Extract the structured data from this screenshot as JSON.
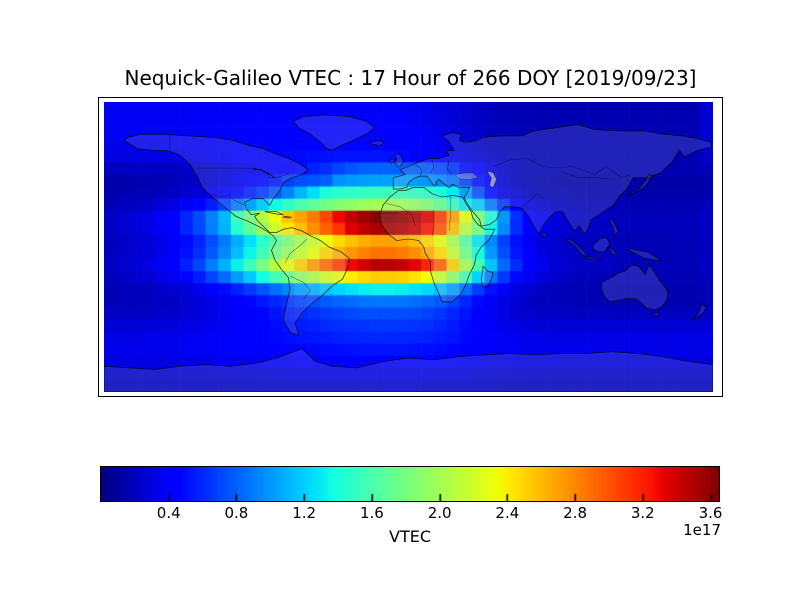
{
  "title": "Nequick-Galileo VTEC : 17 Hour of 266 DOY [2019/09/23]",
  "colorbar": {
    "label": "VTEC",
    "offset_label": "1e17",
    "tick_labels": [
      "0.4",
      "0.8",
      "1.2",
      "1.6",
      "2.0",
      "2.4",
      "2.8",
      "3.2",
      "3.6"
    ],
    "tick_values": [
      0.4,
      0.8,
      1.2,
      1.6,
      2.0,
      2.4,
      2.8,
      3.2,
      3.6
    ],
    "vmin": 0,
    "vmax": 3.65,
    "colormap": "jet"
  },
  "map": {
    "land_fill": "#c6c8d2",
    "coastline_color": "#000000",
    "background": "#ffffff",
    "peak_color": "#8b0000",
    "low_color": "#000091"
  },
  "chart_data": {
    "type": "heatmap",
    "title": "Nequick-Galileo VTEC : 17 Hour of 266 DOY [2019/09/23]",
    "colorbar_label": "VTEC",
    "scale_offset_label": "1e17",
    "colormap": "jet",
    "vmin": 0,
    "vmax": 3.65,
    "legend_position": "bottom-colorbar",
    "grid": {
      "lon_start": -180,
      "lon_step": 7.5,
      "lat_start": 90,
      "lat_step": -7.5,
      "cols": 48,
      "rows": 24
    },
    "overlay": "world-coastlines",
    "values": [
      [
        0.37,
        0.37,
        0.37,
        0.37,
        0.37,
        0.37,
        0.37,
        0.38,
        0.38,
        0.38,
        0.38,
        0.39,
        0.39,
        0.39,
        0.39,
        0.39,
        0.39,
        0.39,
        0.39,
        0.39,
        0.39,
        0.39,
        0.38,
        0.37,
        0.35,
        0.33,
        0.3,
        0.27,
        0.24,
        0.21,
        0.19,
        0.18,
        0.17,
        0.17,
        0.16,
        0.16,
        0.16,
        0.16,
        0.16,
        0.16,
        0.16,
        0.16,
        0.16,
        0.16,
        0.16,
        0.16,
        0.16,
        0.25
      ],
      [
        0.37,
        0.37,
        0.37,
        0.37,
        0.38,
        0.38,
        0.38,
        0.38,
        0.39,
        0.39,
        0.39,
        0.4,
        0.4,
        0.4,
        0.4,
        0.41,
        0.41,
        0.41,
        0.41,
        0.41,
        0.41,
        0.4,
        0.4,
        0.39,
        0.37,
        0.34,
        0.31,
        0.28,
        0.25,
        0.22,
        0.2,
        0.18,
        0.17,
        0.17,
        0.16,
        0.16,
        0.16,
        0.16,
        0.16,
        0.16,
        0.16,
        0.16,
        0.16,
        0.16,
        0.16,
        0.16,
        0.16,
        0.28
      ],
      [
        0.36,
        0.36,
        0.36,
        0.37,
        0.37,
        0.37,
        0.38,
        0.38,
        0.39,
        0.39,
        0.4,
        0.41,
        0.41,
        0.42,
        0.42,
        0.43,
        0.43,
        0.43,
        0.43,
        0.43,
        0.43,
        0.43,
        0.42,
        0.41,
        0.39,
        0.36,
        0.33,
        0.29,
        0.26,
        0.23,
        0.2,
        0.19,
        0.18,
        0.17,
        0.17,
        0.16,
        0.16,
        0.16,
        0.16,
        0.16,
        0.16,
        0.16,
        0.16,
        0.16,
        0.16,
        0.16,
        0.16,
        0.27
      ],
      [
        0.34,
        0.34,
        0.34,
        0.35,
        0.35,
        0.36,
        0.37,
        0.37,
        0.38,
        0.39,
        0.4,
        0.42,
        0.43,
        0.44,
        0.45,
        0.46,
        0.46,
        0.47,
        0.47,
        0.47,
        0.47,
        0.46,
        0.45,
        0.44,
        0.42,
        0.39,
        0.35,
        0.31,
        0.27,
        0.24,
        0.21,
        0.19,
        0.18,
        0.17,
        0.17,
        0.17,
        0.17,
        0.17,
        0.17,
        0.17,
        0.16,
        0.16,
        0.16,
        0.16,
        0.16,
        0.16,
        0.16,
        0.25
      ],
      [
        0.31,
        0.31,
        0.32,
        0.32,
        0.33,
        0.33,
        0.34,
        0.35,
        0.37,
        0.38,
        0.4,
        0.42,
        0.44,
        0.46,
        0.48,
        0.49,
        0.5,
        0.51,
        0.52,
        0.52,
        0.52,
        0.52,
        0.51,
        0.49,
        0.47,
        0.44,
        0.4,
        0.35,
        0.31,
        0.27,
        0.23,
        0.21,
        0.19,
        0.18,
        0.17,
        0.17,
        0.17,
        0.17,
        0.17,
        0.17,
        0.16,
        0.16,
        0.16,
        0.16,
        0.16,
        0.16,
        0.16,
        0.23
      ],
      [
        0.2,
        0.2,
        0.21,
        0.21,
        0.22,
        0.22,
        0.23,
        0.24,
        0.26,
        0.29,
        0.32,
        0.35,
        0.39,
        0.42,
        0.46,
        0.49,
        0.57,
        0.62,
        0.7,
        0.76,
        0.8,
        0.81,
        0.81,
        0.8,
        0.79,
        0.77,
        0.72,
        0.62,
        0.5,
        0.4,
        0.3,
        0.25,
        0.22,
        0.2,
        0.18,
        0.17,
        0.17,
        0.16,
        0.16,
        0.16,
        0.16,
        0.16,
        0.16,
        0.16,
        0.16,
        0.16,
        0.16,
        0.18
      ],
      [
        0.14,
        0.14,
        0.15,
        0.16,
        0.17,
        0.18,
        0.21,
        0.23,
        0.27,
        0.31,
        0.35,
        0.4,
        0.48,
        0.55,
        0.68,
        0.73,
        0.76,
        0.8,
        0.98,
        1.01,
        1.03,
        1.04,
        1.04,
        1.03,
        1.01,
        0.99,
        0.95,
        0.88,
        0.69,
        0.52,
        0.4,
        0.26,
        0.21,
        0.18,
        0.16,
        0.15,
        0.14,
        0.14,
        0.14,
        0.14,
        0.13,
        0.13,
        0.13,
        0.13,
        0.13,
        0.13,
        0.13,
        0.14
      ],
      [
        0.15,
        0.16,
        0.17,
        0.17,
        0.19,
        0.21,
        0.25,
        0.28,
        0.34,
        0.4,
        0.48,
        0.56,
        0.66,
        0.78,
        0.92,
        1.1,
        1.25,
        1.4,
        1.45,
        1.49,
        1.51,
        1.53,
        1.53,
        1.52,
        1.5,
        1.46,
        1.4,
        1.29,
        1.04,
        0.74,
        0.49,
        0.32,
        0.26,
        0.21,
        0.18,
        0.17,
        0.16,
        0.15,
        0.15,
        0.15,
        0.14,
        0.14,
        0.14,
        0.14,
        0.14,
        0.14,
        0.14,
        0.15
      ],
      [
        0.18,
        0.2,
        0.21,
        0.23,
        0.27,
        0.31,
        0.38,
        0.46,
        0.57,
        0.7,
        0.9,
        1.05,
        1.2,
        1.35,
        1.48,
        1.6,
        1.7,
        1.78,
        1.86,
        1.92,
        1.97,
        2.0,
        2.0,
        1.98,
        1.93,
        1.85,
        1.72,
        1.51,
        1.3,
        1.19,
        0.89,
        0.64,
        0.4,
        0.31,
        0.25,
        0.21,
        0.2,
        0.18,
        0.18,
        0.18,
        0.16,
        0.16,
        0.16,
        0.16,
        0.16,
        0.16,
        0.16,
        0.18
      ],
      [
        0.22,
        0.25,
        0.29,
        0.32,
        0.39,
        0.45,
        0.59,
        0.72,
        0.92,
        1.12,
        1.55,
        1.79,
        2.06,
        2.32,
        2.56,
        2.7,
        2.85,
        3.05,
        3.3,
        3.45,
        3.55,
        3.62,
        3.62,
        3.58,
        3.5,
        3.35,
        3.1,
        2.7,
        2.3,
        1.85,
        1.4,
        1.0,
        0.62,
        0.45,
        0.35,
        0.29,
        0.25,
        0.22,
        0.22,
        0.22,
        0.19,
        0.19,
        0.19,
        0.19,
        0.19,
        0.19,
        0.19,
        0.22
      ],
      [
        0.22,
        0.25,
        0.28,
        0.32,
        0.38,
        0.45,
        0.58,
        0.71,
        0.91,
        1.1,
        1.45,
        1.7,
        1.95,
        2.2,
        2.42,
        2.58,
        2.76,
        2.95,
        3.12,
        3.35,
        3.45,
        3.52,
        3.52,
        3.48,
        3.4,
        3.25,
        3.0,
        2.58,
        2.1,
        1.8,
        1.35,
        0.95,
        0.61,
        0.44,
        0.35,
        0.28,
        0.25,
        0.22,
        0.22,
        0.22,
        0.19,
        0.19,
        0.19,
        0.19,
        0.19,
        0.19,
        0.19,
        0.22
      ],
      [
        0.2,
        0.22,
        0.25,
        0.27,
        0.33,
        0.38,
        0.48,
        0.58,
        0.74,
        0.89,
        1.07,
        1.26,
        1.46,
        1.67,
        1.85,
        2.03,
        2.18,
        2.34,
        2.47,
        2.57,
        2.65,
        2.7,
        2.7,
        2.67,
        2.6,
        2.49,
        2.31,
        2.03,
        1.67,
        1.28,
        0.95,
        0.69,
        0.51,
        0.38,
        0.3,
        0.25,
        0.22,
        0.2,
        0.2,
        0.2,
        0.17,
        0.17,
        0.17,
        0.17,
        0.17,
        0.17,
        0.17,
        0.2
      ],
      [
        0.2,
        0.23,
        0.26,
        0.29,
        0.34,
        0.4,
        0.51,
        0.62,
        0.78,
        0.95,
        1.14,
        1.33,
        1.56,
        1.78,
        1.97,
        2.16,
        2.33,
        2.49,
        2.63,
        2.74,
        2.82,
        2.88,
        2.88,
        2.85,
        2.77,
        2.66,
        2.47,
        2.16,
        1.78,
        1.36,
        1.0,
        0.73,
        0.53,
        0.4,
        0.31,
        0.26,
        0.23,
        0.2,
        0.2,
        0.2,
        0.18,
        0.18,
        0.18,
        0.18,
        0.18,
        0.18,
        0.18,
        0.2
      ],
      [
        0.22,
        0.25,
        0.28,
        0.31,
        0.38,
        0.44,
        0.57,
        0.7,
        0.9,
        1.09,
        1.32,
        1.55,
        1.81,
        2.07,
        2.3,
        2.52,
        2.72,
        2.91,
        3.08,
        3.3,
        3.4,
        3.48,
        3.48,
        3.44,
        3.34,
        3.18,
        2.95,
        2.52,
        2.0,
        1.58,
        1.16,
        0.83,
        0.61,
        0.44,
        0.35,
        0.28,
        0.25,
        0.22,
        0.22,
        0.22,
        0.18,
        0.18,
        0.18,
        0.18,
        0.18,
        0.18,
        0.18,
        0.22
      ],
      [
        0.19,
        0.22,
        0.24,
        0.26,
        0.31,
        0.36,
        0.46,
        0.55,
        0.7,
        0.84,
        1.01,
        1.18,
        1.37,
        1.57,
        1.74,
        1.91,
        2.05,
        2.2,
        2.32,
        2.41,
        2.48,
        2.53,
        2.53,
        2.51,
        2.44,
        2.34,
        2.17,
        1.91,
        1.57,
        1.21,
        0.89,
        0.65,
        0.48,
        0.36,
        0.29,
        0.24,
        0.22,
        0.19,
        0.19,
        0.19,
        0.17,
        0.17,
        0.17,
        0.17,
        0.17,
        0.17,
        0.17,
        0.19
      ],
      [
        0.17,
        0.18,
        0.19,
        0.2,
        0.23,
        0.25,
        0.3,
        0.35,
        0.42,
        0.49,
        0.57,
        0.66,
        0.75,
        0.85,
        0.93,
        1.02,
        1.09,
        1.16,
        1.22,
        1.27,
        1.31,
        1.33,
        1.33,
        1.32,
        1.28,
        1.23,
        1.15,
        1.02,
        0.85,
        0.67,
        0.51,
        0.39,
        0.31,
        0.25,
        0.21,
        0.19,
        0.18,
        0.17,
        0.17,
        0.17,
        0.15,
        0.15,
        0.15,
        0.15,
        0.15,
        0.15,
        0.15,
        0.17
      ],
      [
        0.17,
        0.18,
        0.19,
        0.19,
        0.21,
        0.22,
        0.25,
        0.28,
        0.33,
        0.37,
        0.42,
        0.47,
        0.53,
        0.59,
        0.64,
        0.69,
        0.73,
        0.78,
        0.82,
        0.84,
        0.87,
        0.88,
        0.88,
        0.87,
        0.85,
        0.82,
        0.77,
        0.69,
        0.59,
        0.48,
        0.38,
        0.31,
        0.26,
        0.22,
        0.2,
        0.19,
        0.18,
        0.17,
        0.17,
        0.17,
        0.16,
        0.16,
        0.16,
        0.16,
        0.16,
        0.16,
        0.16,
        0.17
      ],
      [
        0.21,
        0.21,
        0.22,
        0.22,
        0.23,
        0.24,
        0.27,
        0.29,
        0.32,
        0.35,
        0.39,
        0.43,
        0.47,
        0.52,
        0.56,
        0.59,
        0.63,
        0.66,
        0.69,
        0.71,
        0.73,
        0.74,
        0.74,
        0.73,
        0.72,
        0.69,
        0.65,
        0.59,
        0.52,
        0.44,
        0.37,
        0.31,
        0.27,
        0.24,
        0.23,
        0.22,
        0.21,
        0.21,
        0.21,
        0.21,
        0.2,
        0.2,
        0.2,
        0.2,
        0.2,
        0.2,
        0.2,
        0.21
      ],
      [
        0.26,
        0.27,
        0.27,
        0.27,
        0.28,
        0.29,
        0.31,
        0.32,
        0.35,
        0.37,
        0.4,
        0.43,
        0.46,
        0.49,
        0.52,
        0.55,
        0.57,
        0.6,
        0.62,
        0.63,
        0.64,
        0.65,
        0.65,
        0.65,
        0.64,
        0.62,
        0.59,
        0.55,
        0.49,
        0.43,
        0.38,
        0.34,
        0.31,
        0.29,
        0.28,
        0.27,
        0.27,
        0.26,
        0.26,
        0.26,
        0.26,
        0.26,
        0.26,
        0.26,
        0.26,
        0.26,
        0.26,
        0.26
      ],
      [
        0.32,
        0.32,
        0.32,
        0.33,
        0.33,
        0.34,
        0.35,
        0.36,
        0.38,
        0.39,
        0.41,
        0.43,
        0.46,
        0.48,
        0.5,
        0.52,
        0.53,
        0.55,
        0.57,
        0.58,
        0.59,
        0.59,
        0.59,
        0.59,
        0.58,
        0.57,
        0.55,
        0.52,
        0.48,
        0.44,
        0.4,
        0.37,
        0.35,
        0.34,
        0.33,
        0.32,
        0.32,
        0.32,
        0.32,
        0.32,
        0.32,
        0.32,
        0.32,
        0.32,
        0.32,
        0.32,
        0.32,
        0.32
      ],
      [
        0.34,
        0.34,
        0.34,
        0.34,
        0.35,
        0.35,
        0.36,
        0.36,
        0.38,
        0.39,
        0.4,
        0.41,
        0.43,
        0.44,
        0.46,
        0.47,
        0.48,
        0.49,
        0.5,
        0.51,
        0.52,
        0.52,
        0.52,
        0.52,
        0.51,
        0.5,
        0.49,
        0.47,
        0.44,
        0.42,
        0.39,
        0.37,
        0.36,
        0.35,
        0.34,
        0.34,
        0.34,
        0.34,
        0.34,
        0.34,
        0.33,
        0.33,
        0.33,
        0.33,
        0.33,
        0.33,
        0.33,
        0.34
      ],
      [
        0.3,
        0.31,
        0.31,
        0.31,
        0.31,
        0.31,
        0.32,
        0.32,
        0.33,
        0.34,
        0.35,
        0.35,
        0.36,
        0.37,
        0.38,
        0.39,
        0.4,
        0.41,
        0.41,
        0.42,
        0.42,
        0.42,
        0.42,
        0.42,
        0.42,
        0.41,
        0.4,
        0.39,
        0.37,
        0.36,
        0.34,
        0.33,
        0.32,
        0.31,
        0.31,
        0.31,
        0.3,
        0.3,
        0.3,
        0.3,
        0.3,
        0.3,
        0.3,
        0.3,
        0.3,
        0.3,
        0.3,
        0.3
      ],
      [
        0.24,
        0.24,
        0.24,
        0.24,
        0.25,
        0.25,
        0.25,
        0.25,
        0.26,
        0.26,
        0.27,
        0.27,
        0.28,
        0.29,
        0.29,
        0.3,
        0.3,
        0.31,
        0.31,
        0.31,
        0.31,
        0.32,
        0.32,
        0.32,
        0.31,
        0.31,
        0.3,
        0.3,
        0.29,
        0.27,
        0.26,
        0.26,
        0.25,
        0.25,
        0.25,
        0.24,
        0.24,
        0.24,
        0.24,
        0.24,
        0.24,
        0.24,
        0.24,
        0.24,
        0.24,
        0.24,
        0.24,
        0.24
      ],
      [
        0.21,
        0.21,
        0.21,
        0.21,
        0.21,
        0.21,
        0.22,
        0.22,
        0.22,
        0.22,
        0.23,
        0.23,
        0.23,
        0.24,
        0.24,
        0.24,
        0.25,
        0.25,
        0.25,
        0.25,
        0.26,
        0.26,
        0.26,
        0.26,
        0.26,
        0.25,
        0.25,
        0.24,
        0.24,
        0.23,
        0.23,
        0.22,
        0.22,
        0.21,
        0.21,
        0.21,
        0.21,
        0.21,
        0.21,
        0.21,
        0.21,
        0.21,
        0.21,
        0.21,
        0.21,
        0.21,
        0.21,
        0.21
      ]
    ]
  }
}
